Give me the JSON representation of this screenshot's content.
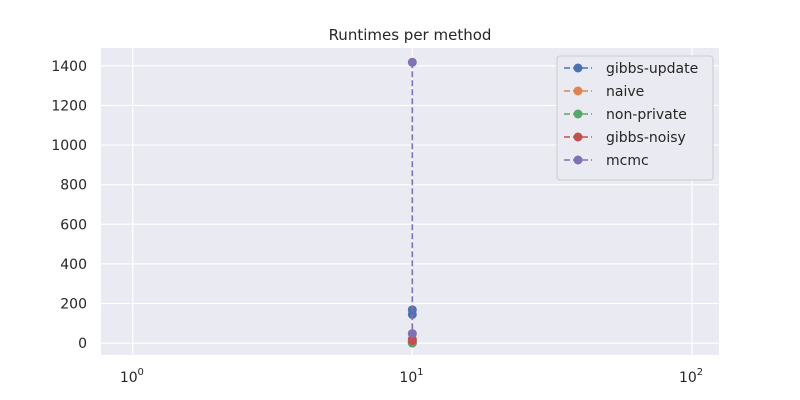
{
  "chart_data": {
    "type": "line",
    "title": "Runtimes per method",
    "xlabel": "",
    "ylabel": "",
    "xscale": "log",
    "xlim": [
      0.77,
      125
    ],
    "ylim": [
      -60,
      1490
    ],
    "x_ticks": [
      {
        "base": "10",
        "exp": "0"
      },
      {
        "base": "10",
        "exp": "1"
      },
      {
        "base": "10",
        "exp": "2"
      }
    ],
    "y_ticks": [
      0,
      200,
      400,
      600,
      800,
      1000,
      1200,
      1400
    ],
    "grid": true,
    "legend_position": "top-right",
    "line_style": "dashed",
    "marker": "circle",
    "series": [
      {
        "name": "gibbs-update",
        "color": "#4c72b0",
        "points": [
          [
            10,
            168
          ],
          [
            10,
            145
          ]
        ]
      },
      {
        "name": "naive",
        "color": "#dd8452",
        "points": [
          [
            10,
            5
          ],
          [
            10,
            2
          ]
        ]
      },
      {
        "name": "non-private",
        "color": "#55a868",
        "points": [
          [
            10,
            2
          ],
          [
            10,
            0
          ]
        ]
      },
      {
        "name": "gibbs-noisy",
        "color": "#c44e52",
        "points": [
          [
            10,
            20
          ],
          [
            10,
            12
          ]
        ]
      },
      {
        "name": "mcmc",
        "color": "#8172b3",
        "points": [
          [
            10,
            1418
          ],
          [
            10,
            48
          ]
        ]
      }
    ]
  }
}
